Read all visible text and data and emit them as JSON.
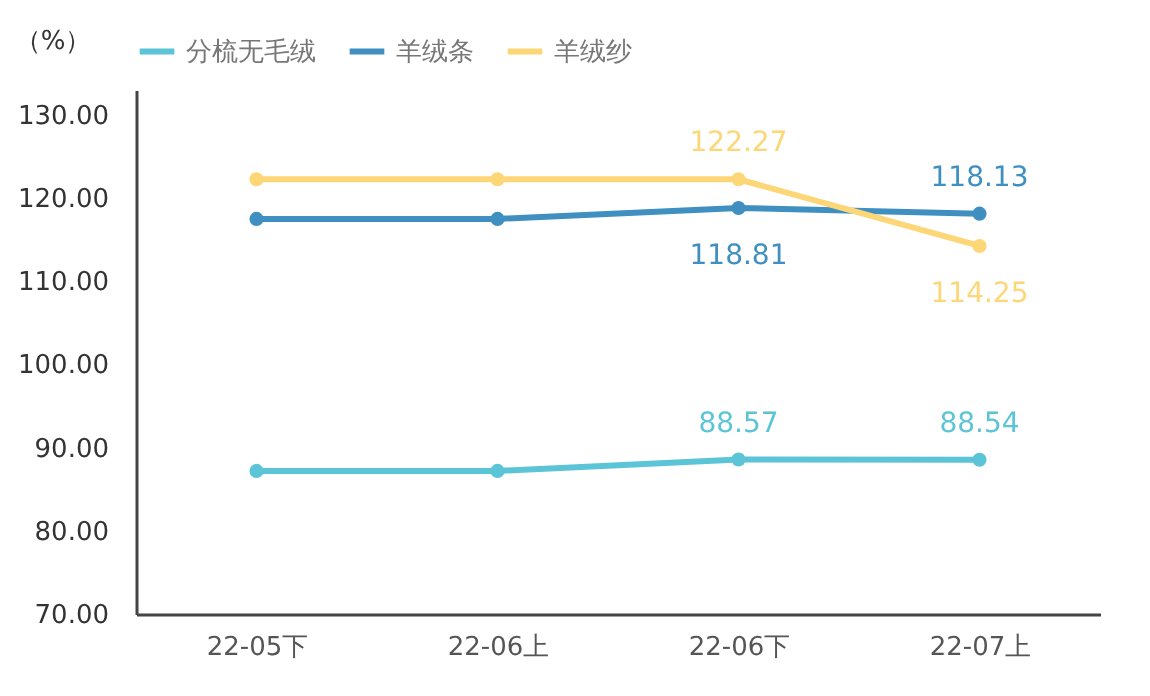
{
  "chart_data": {
    "type": "line",
    "ylabel": "（%）",
    "categories": [
      "22-05下",
      "22-06上",
      "22-06下",
      "22-07上"
    ],
    "series": [
      {
        "name": "分梳无毛绒",
        "color": "#5bc4d6",
        "values": [
          87.2,
          87.2,
          88.57,
          88.54
        ],
        "value_labels": [
          null,
          null,
          "88.57",
          "88.54"
        ]
      },
      {
        "name": "羊绒条",
        "color": "#3f8fc0",
        "values": [
          117.5,
          117.5,
          118.81,
          118.13
        ],
        "value_labels": [
          null,
          null,
          "118.81",
          "118.13"
        ]
      },
      {
        "name": "羊绒纱",
        "color": "#fdd777",
        "values": [
          122.27,
          122.27,
          122.27,
          114.25
        ],
        "value_labels": [
          null,
          null,
          "122.27",
          "114.25"
        ]
      }
    ],
    "ylim": [
      70,
      133
    ],
    "yticks": [
      {
        "value": 70,
        "label": "70.00"
      },
      {
        "value": 80,
        "label": "80.00"
      },
      {
        "value": 90,
        "label": "90.00"
      },
      {
        "value": 100,
        "label": "100.00"
      },
      {
        "value": 110,
        "label": "110.00"
      },
      {
        "value": 120,
        "label": "120.00"
      },
      {
        "value": 130,
        "label": "130.00"
      }
    ],
    "grid": false,
    "legend": "top",
    "marker": "circle",
    "line_style": "solid"
  }
}
